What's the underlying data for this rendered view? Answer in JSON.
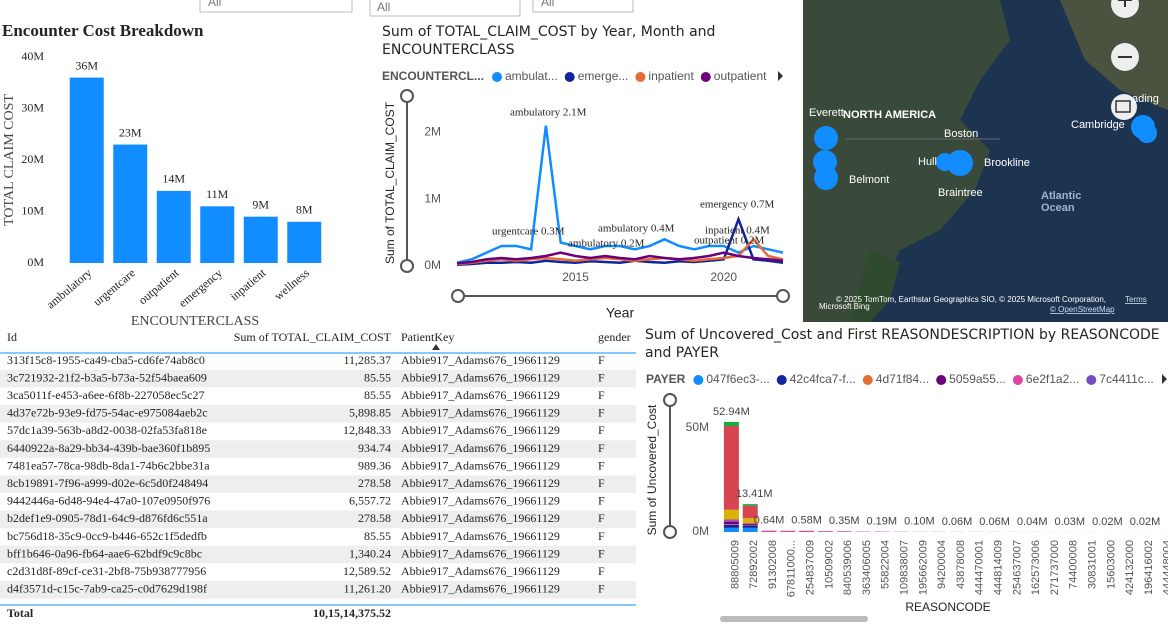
{
  "filters": [
    "All",
    "All",
    "All"
  ],
  "chart_data": [
    {
      "type": "bar",
      "title": "Encounter Cost Breakdown",
      "y_label": "TOTAL CLAIM COST",
      "x_label": "ENCOUNTERCLASS",
      "categories": [
        "ambulatory",
        "urgentcare",
        "outpatient",
        "emergency",
        "inpatient",
        "wellness"
      ],
      "values": [
        36000000,
        23000000,
        14000000,
        11000000,
        9000000,
        8000000
      ],
      "value_labels": [
        "36M",
        "23M",
        "14M",
        "11M",
        "9M",
        "8M"
      ],
      "color": "#118dff",
      "ylim": [
        0,
        40000000
      ],
      "yticks": [
        {
          "value": 0,
          "label": "0M"
        },
        {
          "value": 10000000,
          "label": "10M"
        },
        {
          "value": 20000000,
          "label": "20M"
        },
        {
          "value": 30000000,
          "label": "30M"
        },
        {
          "value": 40000000,
          "label": "40M"
        }
      ]
    },
    {
      "type": "line",
      "title": "Sum of TOTAL_CLAIM_COST by Year, Month and ENCOUNTERCLASS",
      "y_label": "Sum of TOTAL_CLAIM_COST",
      "x_label": "Year",
      "legend_title": "ENCOUNTERCL...",
      "x": [
        2011,
        2011.5,
        2012,
        2012.5,
        2013,
        2013.5,
        2014,
        2014.5,
        2015,
        2015.5,
        2016,
        2016.5,
        2017,
        2017.5,
        2018,
        2018.5,
        2019,
        2019.5,
        2020,
        2020.5,
        2021,
        2021.5,
        2022
      ],
      "series": [
        {
          "name": "ambulat...",
          "color": "#118dff",
          "values": [
            50000,
            100000,
            200000,
            300000,
            300000,
            250000,
            2100000,
            350000,
            300000,
            250000,
            300000,
            300000,
            250000,
            300000,
            400000,
            300000,
            250000,
            300000,
            300000,
            200000,
            300000,
            250000,
            200000
          ]
        },
        {
          "name": "emerge...",
          "color": "#12239e",
          "values": [
            20000,
            30000,
            50000,
            50000,
            60000,
            50000,
            80000,
            60000,
            50000,
            70000,
            60000,
            50000,
            80000,
            60000,
            50000,
            70000,
            60000,
            80000,
            100000,
            700000,
            100000,
            80000,
            50000
          ]
        },
        {
          "name": "inpatient",
          "color": "#e66c37",
          "values": [
            30000,
            50000,
            80000,
            100000,
            80000,
            100000,
            120000,
            100000,
            80000,
            100000,
            120000,
            100000,
            80000,
            100000,
            120000,
            100000,
            80000,
            100000,
            120000,
            150000,
            400000,
            150000,
            100000
          ]
        },
        {
          "name": "outpatient",
          "color": "#6b007b",
          "values": [
            40000,
            60000,
            100000,
            120000,
            100000,
            120000,
            150000,
            200000,
            150000,
            120000,
            150000,
            120000,
            100000,
            150000,
            120000,
            100000,
            120000,
            150000,
            200000,
            150000,
            120000,
            100000,
            80000
          ]
        }
      ],
      "annotations": [
        "ambulatory 2.1M",
        "urgentcare 0.3M",
        "ambulatory 0.4M",
        "emergency 0.7M",
        "inpatient 0.4M",
        "outpatient 0.2M",
        "ambulatory 0.2M"
      ],
      "xlim": [
        2011,
        2022
      ],
      "xticks": [
        2015,
        2020
      ],
      "ylim": [
        0,
        2500000
      ],
      "yticks": [
        {
          "value": 0,
          "label": "0M"
        },
        {
          "value": 1000000,
          "label": "1M"
        },
        {
          "value": 2000000,
          "label": "2M"
        }
      ]
    },
    {
      "type": "stacked_bar",
      "title": "Sum of Uncovered_Cost and First REASONDESCRIPTION by REASONCODE and PAYER",
      "y_label": "Sum of Uncovered_Cost",
      "x_label": "REASONCODE",
      "legend_title": "PAYER",
      "categories": [
        "88805009",
        "72892002",
        "91302008",
        "67811000...",
        "254837009",
        "10509002",
        "840539006",
        "363406005",
        "55822004",
        "109838007",
        "195662009",
        "94200004",
        "43878008",
        "444470001",
        "444814009",
        "254637007",
        "162573006",
        "271737000",
        "74400008",
        "30831001",
        "15603000",
        "424132000",
        "196416002",
        "444448004"
      ],
      "series": [
        {
          "name": "047f6ec3-...",
          "color": "#118dff",
          "values": [
            2000000,
            2000000,
            0,
            0,
            0,
            0,
            0,
            0,
            0,
            0,
            0,
            0,
            0,
            0,
            0,
            0,
            0,
            0,
            0,
            0,
            0,
            0,
            0,
            0
          ]
        },
        {
          "name": "42c4fca7-f...",
          "color": "#12239e",
          "values": [
            1500000,
            1200000,
            0,
            0,
            0,
            0,
            0,
            0,
            0,
            0,
            0,
            0,
            0,
            0,
            0,
            0,
            0,
            0,
            0,
            0,
            0,
            0,
            0,
            0
          ]
        },
        {
          "name": "4d71f84...",
          "color": "#e66c37",
          "values": [
            300000,
            200000,
            0,
            0,
            0,
            0,
            0,
            0,
            0,
            0,
            0,
            0,
            0,
            0,
            0,
            0,
            0,
            0,
            0,
            0,
            0,
            0,
            0,
            0
          ]
        },
        {
          "name": "5059a55...",
          "color": "#6b007b",
          "values": [
            1200000,
            500000,
            0,
            0,
            0,
            0,
            0,
            0,
            0,
            0,
            0,
            0,
            0,
            0,
            0,
            0,
            0,
            0,
            0,
            0,
            0,
            0,
            0,
            0
          ]
        },
        {
          "name": "6e2f1a2...",
          "color": "#e044a7",
          "values": [
            500000,
            210000,
            640000,
            600000,
            580000,
            400000,
            350000,
            200000,
            190000,
            120000,
            100000,
            80000,
            60000,
            60000,
            60000,
            50000,
            40000,
            35000,
            30000,
            25000,
            20000,
            20000,
            20000,
            20000
          ]
        },
        {
          "name": "7c4411c...",
          "color": "#744ec2",
          "values": [
            500000,
            200000,
            0,
            0,
            0,
            0,
            0,
            0,
            0,
            0,
            0,
            0,
            0,
            0,
            0,
            0,
            0,
            0,
            0,
            0,
            0,
            0,
            0,
            0
          ]
        },
        {
          "color": "#d9b300",
          "values": [
            4700000,
            2300000,
            0,
            0,
            0,
            0,
            0,
            0,
            0,
            0,
            0,
            0,
            0,
            0,
            0,
            0,
            0,
            0,
            0,
            0,
            0,
            0,
            0,
            0
          ]
        },
        {
          "color": "#d64550",
          "values": [
            40240000,
            6000000,
            0,
            0,
            0,
            0,
            0,
            0,
            0,
            0,
            0,
            0,
            0,
            0,
            0,
            0,
            0,
            0,
            0,
            0,
            0,
            0,
            0,
            0
          ]
        },
        {
          "color": "#1aab40",
          "values": [
            2000000,
            800000,
            0,
            0,
            0,
            0,
            0,
            0,
            0,
            0,
            0,
            0,
            0,
            0,
            0,
            0,
            0,
            0,
            0,
            0,
            0,
            0,
            0,
            0
          ]
        }
      ],
      "total_labels": [
        "52.94M",
        "13.41M",
        "0.64M",
        null,
        "0.58M",
        null,
        "0.35M",
        null,
        "0.19M",
        null,
        "0.10M",
        null,
        "0.06M",
        null,
        "0.06M",
        null,
        "0.04M",
        null,
        "0.03M",
        null,
        "0.02M",
        null,
        "0.02M",
        null
      ],
      "ylim": [
        0,
        60000000
      ],
      "yticks": [
        {
          "value": 0,
          "label": "0M"
        },
        {
          "value": 50000000,
          "label": "50M"
        }
      ]
    }
  ],
  "table": {
    "columns": [
      "Id",
      "Sum of TOTAL_CLAIM_COST",
      "PatientKey",
      "gender"
    ],
    "rows": [
      [
        "313f15c8-1955-ca49-cba5-cd6fe74ab8c0",
        "11,285.37",
        "Abbie917_Adams676_19661129",
        "F"
      ],
      [
        "3c721932-21f2-b3a5-b73a-52f54baea609",
        "85.55",
        "Abbie917_Adams676_19661129",
        "F"
      ],
      [
        "3ca5011f-e453-a6ee-6f8b-227058ec5c27",
        "85.55",
        "Abbie917_Adams676_19661129",
        "F"
      ],
      [
        "4d37e72b-93e9-fd75-54ac-e975084aeb2c",
        "5,898.85",
        "Abbie917_Adams676_19661129",
        "F"
      ],
      [
        "57dc1a39-563b-a8d2-0038-02fa53fa818e",
        "12,848.33",
        "Abbie917_Adams676_19661129",
        "F"
      ],
      [
        "6440922a-8a29-bb34-439b-bae360f1b895",
        "934.74",
        "Abbie917_Adams676_19661129",
        "F"
      ],
      [
        "7481ea57-78ca-98db-8da1-74b6c2bbe31a",
        "989.36",
        "Abbie917_Adams676_19661129",
        "F"
      ],
      [
        "8cb19891-7f96-a999-d02e-6c5d0f248494",
        "278.58",
        "Abbie917_Adams676_19661129",
        "F"
      ],
      [
        "9442446a-6d48-94e4-47a0-107e0950f976",
        "6,557.72",
        "Abbie917_Adams676_19661129",
        "F"
      ],
      [
        "b2def1e9-0905-78d1-64c9-d876fd6c551a",
        "278.58",
        "Abbie917_Adams676_19661129",
        "F"
      ],
      [
        "bc756d18-35c9-0cc9-b446-652c1f5dedfb",
        "85.55",
        "Abbie917_Adams676_19661129",
        "F"
      ],
      [
        "bff1b646-0a96-fb64-aae6-62bdf9c9c8bc",
        "1,340.24",
        "Abbie917_Adams676_19661129",
        "F"
      ],
      [
        "c2d31d8f-89cf-ce31-2bf8-75b938777956",
        "12,589.52",
        "Abbie917_Adams676_19661129",
        "F"
      ],
      [
        "d4f3571d-c15c-7ab9-ca25-c0d7629d198f",
        "11,261.20",
        "Abbie917_Adams676_19661129",
        "F"
      ]
    ],
    "total": [
      "Total",
      "10,15,14,375.52"
    ]
  },
  "map": {
    "labels": [
      "Everett",
      "NORTH AMERICA",
      "Boston",
      "Hull",
      "Brookline",
      "Belmont",
      "Braintree",
      "Cambridge",
      "ading",
      "Atlantic",
      "Ocean"
    ],
    "attribution": "© 2025 TomTom, Earthstar Geographics SIO, © 2025 Microsoft Corporation,",
    "terms": "Terms",
    "osm": "© OpenStreetMap",
    "bing": "Microsoft Bing"
  }
}
